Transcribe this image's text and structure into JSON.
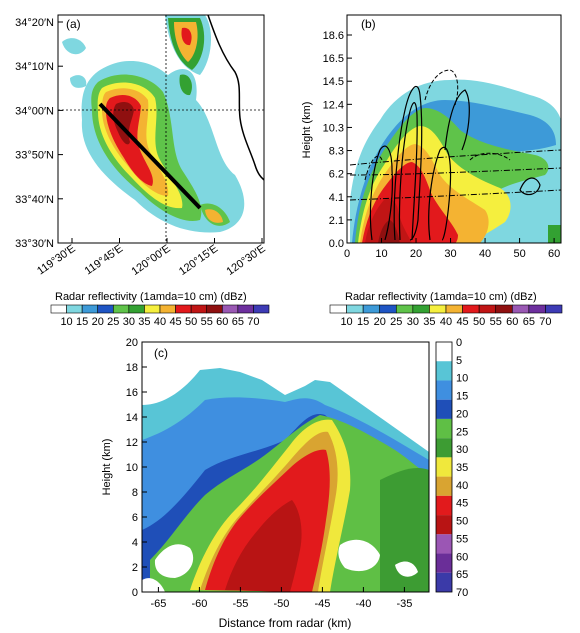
{
  "colors": {
    "reflectivity_palette": [
      "#ffffff",
      "#7fd7e0",
      "#3d9ad8",
      "#1f55c4",
      "#5fc34a",
      "#33a132",
      "#f5ef3e",
      "#f4b332",
      "#e2191c",
      "#c01515",
      "#8f1010",
      "#9a59b4",
      "#6d2f9e",
      "#3d3bb5"
    ],
    "panel_c_palette": [
      "#ffffff",
      "#58c5d6",
      "#3f8fe0",
      "#1f4fb8",
      "#5fbf45",
      "#3d9c33",
      "#f0e83c",
      "#d9a431",
      "#e21a1c",
      "#b81414",
      "#9b56b4",
      "#6a2e98",
      "#3b3aa8"
    ]
  },
  "panels": {
    "a": {
      "label": "(a)",
      "lat_ticks": [
        "34°20′N",
        "34°10′N",
        "34°00′N",
        "33°50′N",
        "33°40′N",
        "33°30′N"
      ],
      "lon_ticks": [
        "119°30′E",
        "119°45′E",
        "120°00′E",
        "120°15′E",
        "120°30′E"
      ],
      "colorbar_title": "Radar reflectivity (1amda=10 cm) (dBz)",
      "colorbar_ticks": [
        "10",
        "15",
        "20",
        "25",
        "30",
        "35",
        "40",
        "45",
        "50",
        "55",
        "60",
        "65",
        "70"
      ]
    },
    "b": {
      "label": "(b)",
      "ylabel": "Height (km)",
      "y_ticks": [
        "18.6",
        "16.5",
        "14.5",
        "12.4",
        "10.3",
        "8.3",
        "6.2",
        "4.1",
        "2.1",
        "0.0"
      ],
      "x_ticks": [
        "0",
        "10",
        "20",
        "30",
        "40",
        "50",
        "60"
      ],
      "colorbar_title": "Radar reflectivity (1amda=10 cm) (dBz)",
      "colorbar_ticks": [
        "10",
        "15",
        "20",
        "25",
        "30",
        "35",
        "40",
        "45",
        "50",
        "55",
        "60",
        "65",
        "70"
      ]
    },
    "c": {
      "label": "(c)",
      "ylabel": "Height (km)",
      "xlabel": "Distance from radar (km)",
      "y_ticks": [
        "0",
        "2",
        "4",
        "6",
        "8",
        "10",
        "12",
        "14",
        "16",
        "18",
        "20"
      ],
      "x_ticks": [
        "-65",
        "-60",
        "-55",
        "-50",
        "-45",
        "-40",
        "-35"
      ],
      "colorbar_ticks": [
        "0",
        "5",
        "10",
        "15",
        "20",
        "25",
        "30",
        "35",
        "40",
        "45",
        "50",
        "55",
        "60",
        "65",
        "70"
      ]
    }
  },
  "chart_data": [
    {
      "type": "heatmap",
      "panel": "a",
      "variable": "Radar reflectivity",
      "units": "dBz",
      "x_range": [
        "119°30′E",
        "120°30′E"
      ],
      "y_range": [
        "33°30′N",
        "34°20′N"
      ],
      "levels": [
        10,
        15,
        20,
        25,
        30,
        35,
        40,
        45,
        50,
        55,
        60,
        65,
        70
      ],
      "cross_section_line": {
        "start": [
          "119°42′E",
          "34°02′N"
        ],
        "end": [
          "120°07′E",
          "33°39′N"
        ]
      },
      "reference_lines": {
        "lat": "34°00′N",
        "lon": "120°00′E"
      }
    },
    {
      "type": "heatmap",
      "panel": "b",
      "variable": "Radar reflectivity",
      "units": "dBz",
      "xlim": [
        0,
        62
      ],
      "ylim": [
        0,
        20
      ],
      "levels": [
        10,
        15,
        20,
        25,
        30,
        35,
        40,
        45,
        50,
        55,
        60,
        65,
        70
      ]
    },
    {
      "type": "heatmap",
      "panel": "c",
      "variable": "Radar reflectivity",
      "units": "dBz",
      "xlim": [
        -67,
        -32
      ],
      "ylim": [
        0,
        20
      ],
      "levels": [
        0,
        5,
        10,
        15,
        20,
        25,
        30,
        35,
        40,
        45,
        50,
        55,
        60,
        65,
        70
      ]
    }
  ]
}
